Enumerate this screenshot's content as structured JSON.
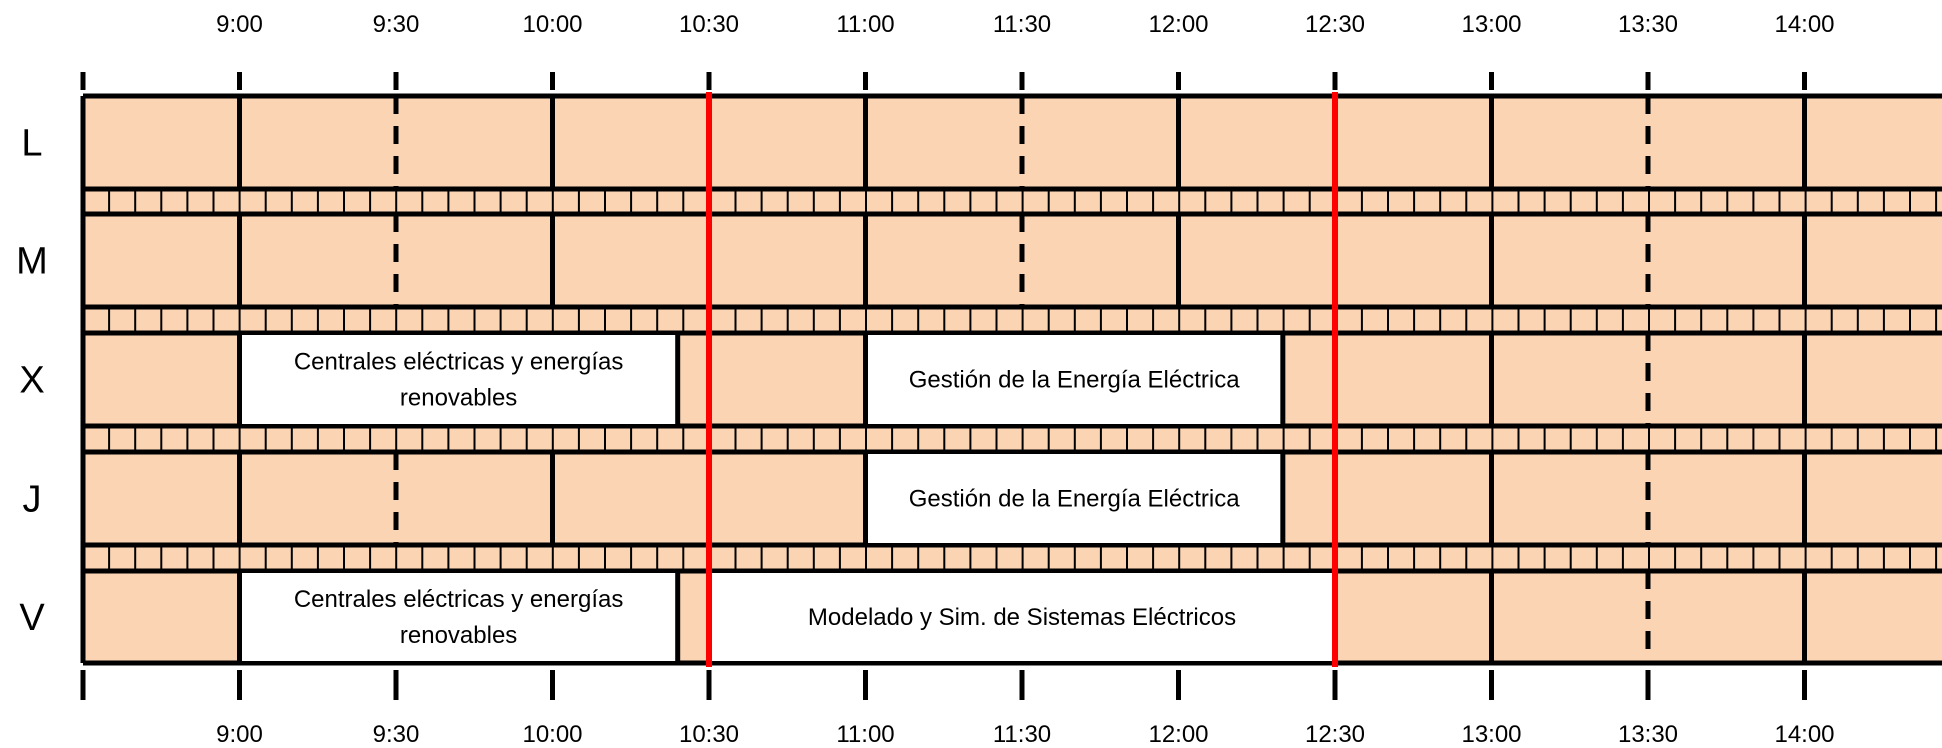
{
  "colors": {
    "cell_fill": "#FBD4B4",
    "course_fill": "#FFFFFF",
    "grid": "#000000",
    "marker": "#FF0000"
  },
  "time_labels": [
    "9:00",
    "9:30",
    "10:00",
    "10:30",
    "11:00",
    "11:30",
    "12:00",
    "12:30",
    "13:00",
    "13:30",
    "14:00"
  ],
  "days": [
    "L",
    "M",
    "X",
    "J",
    "V"
  ],
  "marker_times": [
    "10:30",
    "12:30"
  ],
  "courses": [
    {
      "day": 2,
      "start": "9:00",
      "end": "10:24",
      "lines": [
        "Centrales eléctricas  y energías",
        "renovables"
      ]
    },
    {
      "day": 2,
      "start": "11:00",
      "end": "12:20",
      "lines": [
        "Gestión de la Energía Eléctrica"
      ]
    },
    {
      "day": 3,
      "start": "11:00",
      "end": "12:20",
      "lines": [
        "Gestión de la Energía Eléctrica"
      ]
    },
    {
      "day": 4,
      "start": "9:00",
      "end": "10:24",
      "lines": [
        "Centrales eléctricas  y energías",
        "renovables"
      ]
    },
    {
      "day": 4,
      "start": "10:30",
      "end": "12:30",
      "lines": [
        "Modelado y Sim. de Sistemas Eléctricos"
      ]
    }
  ]
}
